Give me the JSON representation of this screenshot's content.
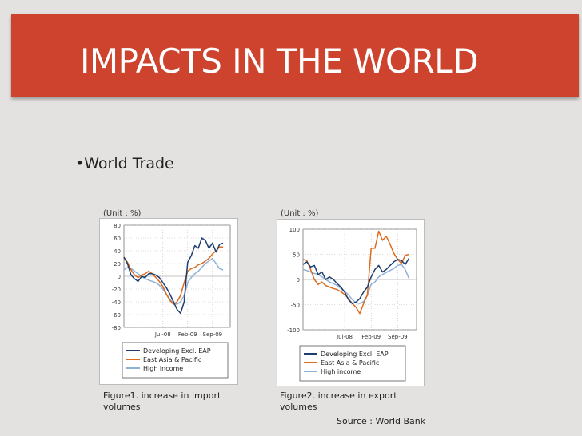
{
  "slide": {
    "title": "IMPACTS IN THE WORLD",
    "bullet": "•World Trade",
    "source": "Source : World Bank"
  },
  "figures": [
    {
      "unit_label": "(Unit : %)",
      "caption_line1": "Figure1. increase in import",
      "caption_line2": "volumes"
    },
    {
      "unit_label": "(Unit : %)",
      "caption_line1": "Figure2.  increase in export",
      "caption_line2": "volumes"
    }
  ],
  "colors": {
    "title_band": "#cd432d",
    "dev_eap": "#1e3e6e",
    "east_asia": "#e06a1c",
    "high_income": "#8eb1d8"
  },
  "chart_data": [
    {
      "type": "line",
      "title": "increase in import volumes",
      "xlabel": "",
      "ylabel": "(Unit : %)",
      "ylim": [
        -80,
        80
      ],
      "yticks": [
        80,
        60,
        40,
        20,
        0,
        -20,
        -40,
        -60,
        -80
      ],
      "xlim": [
        0,
        30
      ],
      "xtick_labels": [
        "Jul-08",
        "Feb-09",
        "Sep-09"
      ],
      "xtick_positions": [
        11,
        18,
        25
      ],
      "grid": true,
      "series": [
        {
          "name": "Developing Excl. EAP",
          "color": "#1e3e6e",
          "x": [
            0,
            1,
            2,
            3,
            4,
            5,
            6,
            7,
            8,
            9,
            10,
            11,
            12,
            13,
            14,
            15,
            16,
            17,
            18,
            19,
            20,
            21,
            22,
            23,
            24,
            25,
            26,
            27,
            28
          ],
          "values": [
            30,
            20,
            2,
            -4,
            -8,
            0,
            -2,
            4,
            4,
            2,
            -2,
            -10,
            -18,
            -28,
            -40,
            -52,
            -58,
            -40,
            22,
            32,
            48,
            44,
            60,
            56,
            44,
            52,
            38,
            50,
            52
          ]
        },
        {
          "name": "East Asia & Pacific",
          "color": "#e06a1c",
          "x": [
            0,
            1,
            2,
            3,
            4,
            5,
            6,
            7,
            8,
            9,
            10,
            11,
            12,
            13,
            14,
            15,
            16,
            17,
            18,
            19,
            20,
            21,
            22,
            23,
            24,
            25,
            26,
            27,
            28
          ],
          "values": [
            30,
            22,
            10,
            2,
            -2,
            2,
            4,
            8,
            4,
            -2,
            -8,
            -16,
            -28,
            -38,
            -44,
            -40,
            -30,
            -10,
            8,
            12,
            14,
            18,
            20,
            24,
            28,
            35,
            40,
            46,
            46
          ]
        },
        {
          "name": "High income",
          "color": "#8eb1d8",
          "x": [
            0,
            1,
            2,
            3,
            4,
            5,
            6,
            7,
            8,
            9,
            10,
            11,
            12,
            13,
            14,
            15,
            16,
            17,
            18,
            19,
            20,
            21,
            22,
            23,
            24,
            25,
            26,
            27,
            28
          ],
          "values": [
            10,
            14,
            12,
            8,
            4,
            0,
            -4,
            -6,
            -8,
            -10,
            -14,
            -20,
            -28,
            -36,
            -42,
            -44,
            -40,
            -30,
            -10,
            -2,
            4,
            8,
            14,
            20,
            24,
            28,
            20,
            12,
            10
          ]
        }
      ],
      "legend": "bottom"
    },
    {
      "type": "line",
      "title": "increase in export volumes",
      "xlabel": "",
      "ylabel": "(Unit : %)",
      "ylim": [
        -100,
        100
      ],
      "yticks": [
        100,
        50,
        0,
        -50,
        -100
      ],
      "xlim": [
        0,
        30
      ],
      "xtick_labels": [
        "Jul-08",
        "Feb-09",
        "Sep-09"
      ],
      "xtick_positions": [
        11,
        18,
        25
      ],
      "grid": true,
      "series": [
        {
          "name": "Developing Excl. EAP",
          "color": "#1e3e6e",
          "x": [
            0,
            1,
            2,
            3,
            4,
            5,
            6,
            7,
            8,
            9,
            10,
            11,
            12,
            13,
            14,
            15,
            16,
            17,
            18,
            19,
            20,
            21,
            22,
            23,
            24,
            25,
            26,
            27,
            28
          ],
          "values": [
            30,
            35,
            25,
            28,
            10,
            15,
            0,
            5,
            0,
            -8,
            -15,
            -25,
            -40,
            -48,
            -45,
            -38,
            -25,
            -15,
            5,
            20,
            28,
            15,
            20,
            28,
            35,
            40,
            38,
            30,
            42
          ]
        },
        {
          "name": "East Asia & Pacific",
          "color": "#e06a1c",
          "x": [
            0,
            1,
            2,
            3,
            4,
            5,
            6,
            7,
            8,
            9,
            10,
            11,
            12,
            13,
            14,
            15,
            16,
            17,
            18,
            19,
            20,
            21,
            22,
            23,
            24,
            25,
            26,
            27,
            28
          ],
          "values": [
            40,
            38,
            20,
            0,
            -10,
            -5,
            -12,
            -15,
            -18,
            -20,
            -24,
            -30,
            -38,
            -48,
            -55,
            -68,
            -48,
            -30,
            62,
            62,
            96,
            78,
            86,
            70,
            52,
            40,
            32,
            48,
            50
          ]
        },
        {
          "name": "High income",
          "color": "#8eb1d8",
          "x": [
            0,
            1,
            2,
            3,
            4,
            5,
            6,
            7,
            8,
            9,
            10,
            11,
            12,
            13,
            14,
            15,
            16,
            17,
            18,
            19,
            20,
            21,
            22,
            23,
            24,
            25,
            26,
            27,
            28
          ],
          "values": [
            20,
            18,
            15,
            12,
            10,
            5,
            0,
            -5,
            -8,
            -12,
            -18,
            -24,
            -30,
            -40,
            -46,
            -48,
            -44,
            -32,
            -10,
            -5,
            5,
            10,
            14,
            18,
            22,
            28,
            30,
            20,
            2
          ]
        }
      ],
      "legend": "bottom"
    }
  ]
}
